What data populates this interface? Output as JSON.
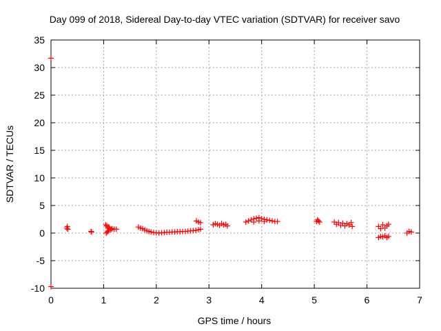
{
  "chart_data": {
    "type": "scatter",
    "title": "Day 099 of 2018, Sidereal Day-to-day VTEC variation (SDTVAR) for receiver savo",
    "xlabel": "GPS time / hours",
    "ylabel": "SDTVAR / TECUs",
    "xlim": [
      0,
      7
    ],
    "ylim": [
      -10,
      35
    ],
    "xticks": [
      "0",
      "1",
      "2",
      "3",
      "4",
      "5",
      "6",
      "7"
    ],
    "yticks": [
      "-10",
      "-5",
      "0",
      "5",
      "10",
      "15",
      "20",
      "25",
      "30",
      "35"
    ],
    "grid": true,
    "marker": "plus",
    "color": "#ff0000",
    "series": [
      {
        "points": [
          [
            0.0,
            31.7
          ],
          [
            0.0,
            -9.7
          ],
          [
            0.3,
            0.9
          ],
          [
            0.31,
            1.2
          ],
          [
            0.32,
            0.7
          ],
          [
            0.76,
            0.3
          ],
          [
            0.77,
            0.2
          ],
          [
            1.04,
            1.5
          ],
          [
            1.06,
            1.3
          ],
          [
            1.08,
            0.9
          ],
          [
            1.1,
            1.1
          ],
          [
            1.12,
            0.8
          ],
          [
            1.14,
            0.6
          ],
          [
            1.16,
            0.8
          ],
          [
            1.2,
            0.7
          ],
          [
            1.24,
            0.7
          ],
          [
            1.05,
            0.0
          ],
          [
            1.07,
            0.2
          ],
          [
            1.09,
            0.4
          ],
          [
            1.66,
            1.1
          ],
          [
            1.7,
            0.9
          ],
          [
            1.74,
            0.8
          ],
          [
            1.78,
            0.6
          ],
          [
            1.82,
            0.4
          ],
          [
            1.86,
            0.3
          ],
          [
            1.9,
            0.2
          ],
          [
            1.95,
            0.1
          ],
          [
            2.0,
            0.05
          ],
          [
            2.05,
            0.0
          ],
          [
            2.1,
            0.05
          ],
          [
            2.15,
            0.1
          ],
          [
            2.2,
            0.15
          ],
          [
            2.25,
            0.15
          ],
          [
            2.3,
            0.2
          ],
          [
            2.35,
            0.2
          ],
          [
            2.4,
            0.25
          ],
          [
            2.45,
            0.25
          ],
          [
            2.5,
            0.3
          ],
          [
            2.55,
            0.3
          ],
          [
            2.6,
            0.35
          ],
          [
            2.65,
            0.4
          ],
          [
            2.7,
            0.45
          ],
          [
            2.75,
            0.5
          ],
          [
            2.8,
            0.6
          ],
          [
            2.84,
            0.7
          ],
          [
            2.76,
            2.2
          ],
          [
            2.8,
            2.0
          ],
          [
            2.84,
            1.9
          ],
          [
            3.08,
            1.5
          ],
          [
            3.12,
            1.7
          ],
          [
            3.16,
            1.6
          ],
          [
            3.2,
            1.4
          ],
          [
            3.24,
            1.7
          ],
          [
            3.28,
            1.5
          ],
          [
            3.32,
            1.6
          ],
          [
            3.35,
            1.3
          ],
          [
            3.7,
            2.0
          ],
          [
            3.75,
            2.2
          ],
          [
            3.8,
            2.4
          ],
          [
            3.85,
            2.6
          ],
          [
            3.9,
            2.7
          ],
          [
            3.95,
            2.8
          ],
          [
            4.0,
            2.6
          ],
          [
            4.05,
            2.5
          ],
          [
            4.1,
            2.4
          ],
          [
            4.15,
            2.3
          ],
          [
            4.2,
            2.2
          ],
          [
            4.25,
            2.1
          ],
          [
            4.3,
            2.1
          ],
          [
            3.85,
            2.0
          ],
          [
            3.95,
            2.2
          ],
          [
            4.05,
            2.1
          ],
          [
            5.04,
            2.1
          ],
          [
            5.06,
            2.4
          ],
          [
            5.08,
            2.2
          ],
          [
            5.1,
            2.0
          ],
          [
            5.38,
            2.0
          ],
          [
            5.42,
            1.6
          ],
          [
            5.46,
            1.9
          ],
          [
            5.5,
            1.4
          ],
          [
            5.54,
            1.8
          ],
          [
            5.58,
            1.3
          ],
          [
            5.62,
            1.7
          ],
          [
            5.66,
            1.5
          ],
          [
            5.7,
            1.9
          ],
          [
            5.72,
            1.2
          ],
          [
            6.22,
            1.2
          ],
          [
            6.26,
            0.8
          ],
          [
            6.3,
            1.5
          ],
          [
            6.34,
            0.9
          ],
          [
            6.38,
            1.3
          ],
          [
            6.41,
            1.6
          ],
          [
            6.22,
            -0.8
          ],
          [
            6.26,
            -0.6
          ],
          [
            6.3,
            -0.7
          ],
          [
            6.34,
            -0.5
          ],
          [
            6.38,
            -0.8
          ],
          [
            6.41,
            -0.6
          ],
          [
            6.76,
            0.0
          ],
          [
            6.8,
            0.3
          ],
          [
            6.84,
            0.2
          ]
        ]
      }
    ]
  }
}
